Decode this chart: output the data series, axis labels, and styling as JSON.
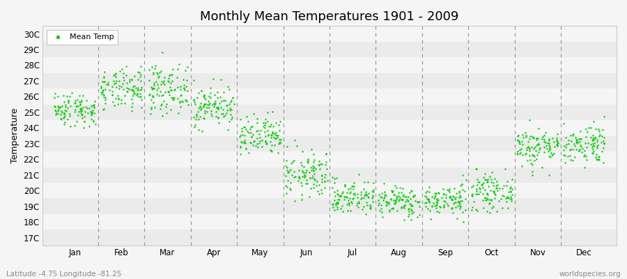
{
  "title": "Monthly Mean Temperatures 1901 - 2009",
  "ylabel": "Temperature",
  "xlabel_bottom": "Latitude -4.75 Longitude -81.25",
  "watermark": "worldspecies.org",
  "dot_color": "#00cc00",
  "background_color": "#f5f5f5",
  "plot_bg_color": "#f5f5f5",
  "ytick_labels": [
    "17C",
    "18C",
    "19C",
    "20C",
    "21C",
    "22C",
    "23C",
    "24C",
    "25C",
    "26C",
    "27C",
    "28C",
    "29C",
    "30C"
  ],
  "ytick_values": [
    17,
    18,
    19,
    20,
    21,
    22,
    23,
    24,
    25,
    26,
    27,
    28,
    29,
    30
  ],
  "month_labels": [
    "Jan",
    "Feb",
    "Mar",
    "Apr",
    "May",
    "Jun",
    "Jul",
    "Aug",
    "Sep",
    "Oct",
    "Nov",
    "Dec"
  ],
  "n_years": 109,
  "seed": 42,
  "monthly_means": [
    25.2,
    26.4,
    26.5,
    25.4,
    23.4,
    21.0,
    19.6,
    19.3,
    19.4,
    19.9,
    22.8,
    23.0
  ],
  "monthly_stds": [
    0.55,
    0.65,
    0.75,
    0.65,
    0.65,
    0.75,
    0.55,
    0.5,
    0.5,
    0.55,
    0.65,
    0.65
  ],
  "monthly_high_clips": [
    27.8,
    29.5,
    29.7,
    27.5,
    25.5,
    23.5,
    21.5,
    21.0,
    21.2,
    21.8,
    24.5,
    26.5
  ],
  "monthly_low_clips": [
    24.0,
    24.5,
    24.5,
    23.8,
    21.8,
    19.0,
    17.8,
    18.0,
    18.0,
    18.5,
    21.0,
    21.5
  ],
  "dashed_line_color": "#999999",
  "legend_label": "Mean Temp",
  "fig_width": 9.0,
  "fig_height": 4.0,
  "dpi": 100,
  "dot_size": 3,
  "dot_alpha": 1.0,
  "stripe_colors": [
    "#ebebeb",
    "#f5f5f5"
  ],
  "title_fontsize": 13,
  "tick_fontsize": 8.5,
  "ylabel_fontsize": 9
}
